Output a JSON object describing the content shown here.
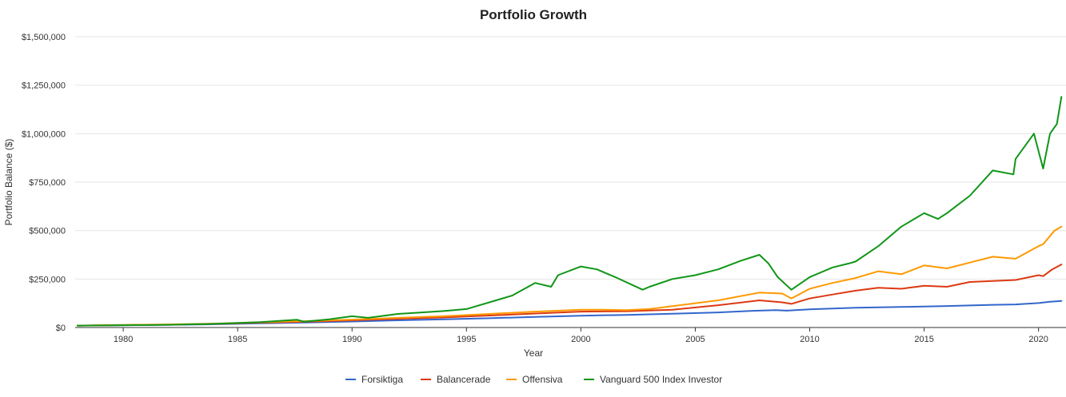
{
  "chart_data": {
    "type": "line",
    "title": "Portfolio Growth",
    "xlabel": "Year",
    "ylabel": "Portfolio Balance ($)",
    "xlim": [
      1977.9,
      2021.2
    ],
    "ylim": [
      0,
      1500000
    ],
    "grid": true,
    "legend_position": "bottom",
    "x_ticks": [
      1980,
      1985,
      1990,
      1995,
      2000,
      2005,
      2010,
      2015,
      2020
    ],
    "y_ticks": [
      0,
      250000,
      500000,
      750000,
      1000000,
      1250000,
      1500000
    ],
    "y_tick_labels": [
      "$0",
      "$250,000",
      "$500,000",
      "$750,000",
      "$1,000,000",
      "$1,250,000",
      "$1,500,000"
    ],
    "series": [
      {
        "name": "Forsiktiga",
        "color": "#3366cc",
        "x": [
          1978,
          1980,
          1982,
          1984,
          1986,
          1988,
          1990,
          1992,
          1994,
          1996,
          1998,
          2000,
          2002,
          2004,
          2006,
          2007.5,
          2008.5,
          2009,
          2010,
          2012,
          2014,
          2016,
          2018,
          2019,
          2020,
          2020.5,
          2021
        ],
        "y": [
          10000,
          12000,
          14000,
          17000,
          22000,
          26000,
          31000,
          37000,
          42000,
          48000,
          55000,
          61000,
          65000,
          71000,
          78000,
          86000,
          90000,
          87000,
          94000,
          102000,
          106000,
          111000,
          117000,
          119000,
          126000,
          133000,
          137000
        ]
      },
      {
        "name": "Balancerade",
        "color": "#dc3912",
        "x": [
          1978,
          1980,
          1982,
          1984,
          1986,
          1988,
          1990,
          1992,
          1994,
          1996,
          1998,
          2000,
          2002,
          2004,
          2006,
          2007.8,
          2008.8,
          2009.2,
          2010,
          2011,
          2012,
          2013,
          2014,
          2015,
          2016,
          2017,
          2018,
          2019,
          2020,
          2020.2,
          2020.6,
          2021
        ],
        "y": [
          10000,
          12500,
          15000,
          18500,
          25000,
          30000,
          37000,
          45000,
          52000,
          62000,
          72000,
          82000,
          84000,
          92000,
          115000,
          140000,
          130000,
          122000,
          150000,
          170000,
          190000,
          205000,
          200000,
          215000,
          210000,
          235000,
          240000,
          245000,
          270000,
          265000,
          300000,
          325000
        ]
      },
      {
        "name": "Offensiva",
        "color": "#ff9900",
        "x": [
          1978,
          1980,
          1982,
          1984,
          1986,
          1988,
          1990,
          1992,
          1994,
          1996,
          1998,
          2000,
          2001,
          2002,
          2003,
          2004,
          2006,
          2007.8,
          2008.8,
          2009.2,
          2010,
          2011,
          2012,
          2013,
          2014,
          2015,
          2016,
          2017,
          2018,
          2019,
          2020,
          2020.2,
          2020.7,
          2021
        ],
        "y": [
          10000,
          13000,
          16000,
          20000,
          27000,
          33000,
          41000,
          50000,
          58000,
          70000,
          82000,
          92000,
          92000,
          90000,
          95000,
          110000,
          140000,
          180000,
          175000,
          150000,
          200000,
          230000,
          255000,
          290000,
          275000,
          320000,
          305000,
          335000,
          365000,
          355000,
          420000,
          430000,
          500000,
          520000
        ]
      },
      {
        "name": "Vanguard 500 Index Investor",
        "color": "#109618",
        "x": [
          1978,
          1980,
          1982,
          1984,
          1986,
          1987.6,
          1987.9,
          1989,
          1990,
          1990.7,
          1992,
          1994,
          1995,
          1996,
          1997,
          1998,
          1998.7,
          1999,
          2000,
          2000.7,
          2001.5,
          2002.7,
          2003,
          2004,
          2005,
          2006,
          2007,
          2007.8,
          2008.2,
          2008.6,
          2009.2,
          2010,
          2011,
          2011.7,
          2012,
          2013,
          2014,
          2015,
          2015.6,
          2016,
          2017,
          2018,
          2018.9,
          2019,
          2019.8,
          2020.2,
          2020.5,
          2020.8,
          2021
        ],
        "y": [
          10000,
          12000,
          14000,
          19000,
          28000,
          40000,
          30000,
          42000,
          58000,
          50000,
          70000,
          85000,
          95000,
          130000,
          165000,
          230000,
          210000,
          270000,
          315000,
          300000,
          260000,
          195000,
          210000,
          250000,
          270000,
          300000,
          345000,
          375000,
          330000,
          260000,
          195000,
          260000,
          310000,
          330000,
          340000,
          420000,
          520000,
          590000,
          560000,
          590000,
          680000,
          810000,
          790000,
          870000,
          1000000,
          820000,
          1000000,
          1050000,
          1190000
        ]
      }
    ]
  }
}
